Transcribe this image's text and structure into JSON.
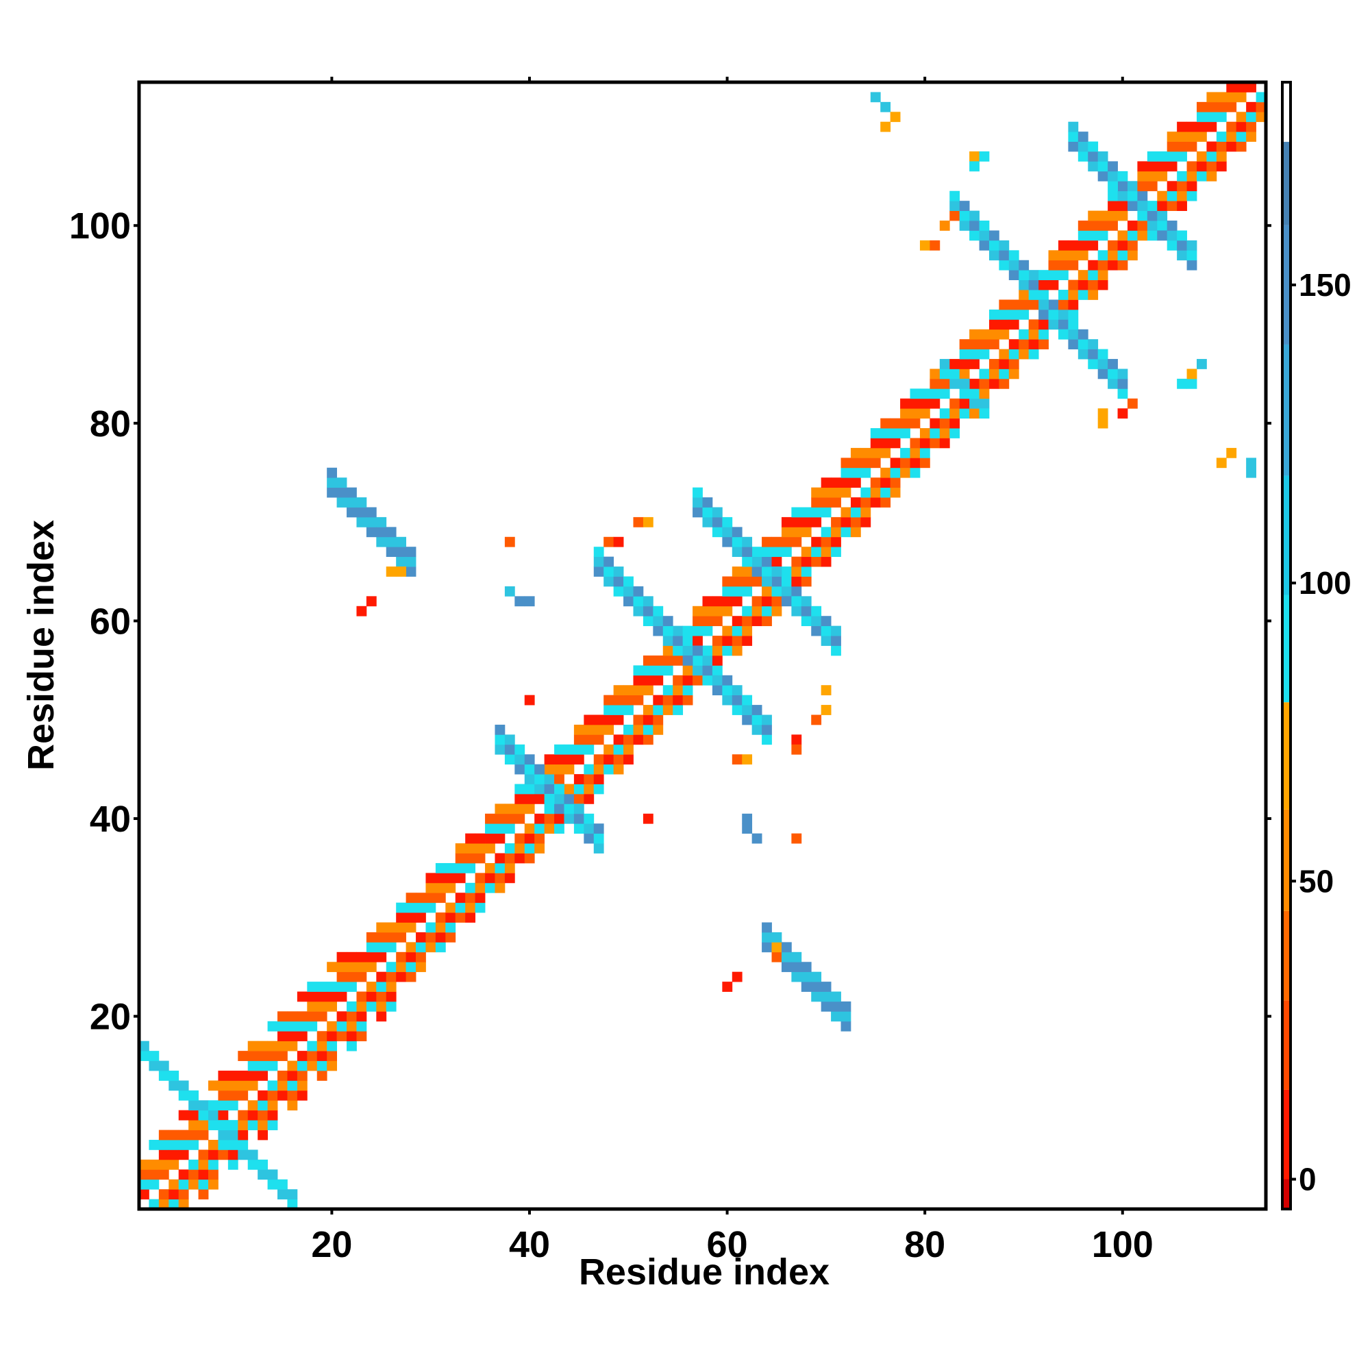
{
  "chart_data": {
    "type": "heatmap",
    "title": "",
    "xlabel": "Residue index",
    "ylabel": "Residue index",
    "xlim": [
      1,
      114
    ],
    "ylim": [
      1,
      114
    ],
    "x_ticks": [
      20,
      40,
      60,
      80,
      100
    ],
    "y_ticks": [
      20,
      40,
      60,
      80,
      100
    ],
    "x_tick_labels": [
      "20",
      "40",
      "60",
      "80",
      "100"
    ],
    "y_tick_labels": [
      "20",
      "40",
      "60",
      "80",
      "100"
    ],
    "colorbar": {
      "range": [
        -5,
        184
      ],
      "ticks": [
        0,
        50,
        100,
        150
      ],
      "tick_labels": [
        "0",
        "50",
        "100",
        "150"
      ],
      "bands": [
        {
          "from": -5,
          "to": 0,
          "color": "#d40000"
        },
        {
          "from": 0,
          "to": 15,
          "color": "#ff1a00"
        },
        {
          "from": 15,
          "to": 30,
          "color": "#ff4a00"
        },
        {
          "from": 30,
          "to": 45,
          "color": "#ff6a00"
        },
        {
          "from": 45,
          "to": 62,
          "color": "#ff8c00"
        },
        {
          "from": 62,
          "to": 80,
          "color": "#ffa500"
        },
        {
          "from": 80,
          "to": 98,
          "color": "#1ee0ee"
        },
        {
          "from": 98,
          "to": 118,
          "color": "#1ec8e6"
        },
        {
          "from": 118,
          "to": 140,
          "color": "#3aa8d8"
        },
        {
          "from": 140,
          "to": 160,
          "color": "#4a90c8"
        },
        {
          "from": 160,
          "to": 174,
          "color": "#4682b4"
        },
        {
          "from": 174,
          "to": 184,
          "color": "#ffffff"
        }
      ]
    },
    "colors": {
      "red": "#ff1a00",
      "dark_orange": "#ff5a00",
      "orange": "#ff8c00",
      "light_orange": "#ffa500",
      "cyan": "#1ee0ee",
      "sky_blue": "#2ec4e0",
      "steel_blue": "#4a90c8"
    },
    "regions": [
      {
        "kind": "diagonal",
        "i_start": 1,
        "i_end": 114,
        "band": [
          1,
          2,
          3,
          4,
          5
        ],
        "colors": [
          "dark_orange",
          "orange",
          "red",
          "cyan"
        ]
      },
      {
        "kind": "antidiagonal",
        "center": [
          5,
          12
        ],
        "length": 8,
        "width": 2,
        "colors": [
          "cyan",
          "sky_blue"
        ]
      },
      {
        "kind": "antidiagonal",
        "center": [
          12,
          5
        ],
        "length": 8,
        "width": 2,
        "colors": [
          "cyan",
          "sky_blue"
        ]
      },
      {
        "kind": "antidiagonal",
        "center": [
          24,
          69
        ],
        "length": 8,
        "width": 3,
        "colors": [
          "steel_blue",
          "sky_blue"
        ]
      },
      {
        "kind": "antidiagonal",
        "center": [
          68,
          23
        ],
        "length": 8,
        "width": 3,
        "colors": [
          "steel_blue",
          "sky_blue"
        ]
      },
      {
        "kind": "antidiagonal",
        "center": [
          40,
          44
        ],
        "length": 6,
        "width": 3,
        "colors": [
          "steel_blue",
          "sky_blue",
          "cyan"
        ]
      },
      {
        "kind": "antidiagonal",
        "center": [
          44,
          40
        ],
        "length": 6,
        "width": 3,
        "colors": [
          "steel_blue",
          "sky_blue",
          "cyan"
        ]
      },
      {
        "kind": "antidiagonal",
        "center": [
          51,
          61
        ],
        "length": 8,
        "width": 3,
        "colors": [
          "steel_blue",
          "sky_blue",
          "cyan"
        ]
      },
      {
        "kind": "antidiagonal",
        "center": [
          60,
          52
        ],
        "length": 8,
        "width": 3,
        "colors": [
          "steel_blue",
          "sky_blue",
          "cyan"
        ]
      },
      {
        "kind": "antidiagonal",
        "center": [
          61,
          67
        ],
        "length": 8,
        "width": 3,
        "colors": [
          "steel_blue",
          "sky_blue",
          "cyan"
        ]
      },
      {
        "kind": "antidiagonal",
        "center": [
          67,
          61
        ],
        "length": 8,
        "width": 3,
        "colors": [
          "steel_blue",
          "sky_blue",
          "cyan"
        ]
      },
      {
        "kind": "antidiagonal",
        "center": [
          87,
          97
        ],
        "length": 9,
        "width": 3,
        "colors": [
          "steel_blue",
          "sky_blue",
          "cyan"
        ]
      },
      {
        "kind": "antidiagonal",
        "center": [
          96,
          87
        ],
        "length": 9,
        "width": 3,
        "colors": [
          "steel_blue",
          "sky_blue",
          "cyan"
        ]
      },
      {
        "kind": "antidiagonal",
        "center": [
          98,
          105
        ],
        "length": 7,
        "width": 3,
        "colors": [
          "sky_blue",
          "steel_blue",
          "cyan"
        ]
      },
      {
        "kind": "antidiagonal",
        "center": [
          104,
          99
        ],
        "length": 7,
        "width": 3,
        "colors": [
          "sky_blue",
          "steel_blue",
          "cyan"
        ]
      },
      {
        "kind": "antidiagonal",
        "center": [
          84,
          83
        ],
        "length": 4,
        "width": 2,
        "colors": [
          "cyan",
          "sky_blue"
        ]
      }
    ],
    "isolated_cells": [
      {
        "x": 75,
        "y": 113,
        "c": "sky_blue"
      },
      {
        "x": 76,
        "y": 112,
        "c": "sky_blue"
      },
      {
        "x": 76,
        "y": 110,
        "c": "light_orange"
      },
      {
        "x": 77,
        "y": 111,
        "c": "light_orange"
      },
      {
        "x": 85,
        "y": 107,
        "c": "light_orange"
      },
      {
        "x": 86,
        "y": 107,
        "c": "cyan"
      },
      {
        "x": 85,
        "y": 106,
        "c": "cyan"
      },
      {
        "x": 38,
        "y": 68,
        "c": "dark_orange"
      },
      {
        "x": 48,
        "y": 68,
        "c": "dark_orange"
      },
      {
        "x": 49,
        "y": 68,
        "c": "red"
      },
      {
        "x": 51,
        "y": 70,
        "c": "dark_orange"
      },
      {
        "x": 52,
        "y": 70,
        "c": "light_orange"
      },
      {
        "x": 38,
        "y": 63,
        "c": "sky_blue"
      },
      {
        "x": 39,
        "y": 62,
        "c": "steel_blue"
      },
      {
        "x": 40,
        "y": 62,
        "c": "steel_blue"
      },
      {
        "x": 23,
        "y": 61,
        "c": "red"
      },
      {
        "x": 24,
        "y": 62,
        "c": "red"
      },
      {
        "x": 40,
        "y": 52,
        "c": "red"
      },
      {
        "x": 52,
        "y": 40,
        "c": "red"
      },
      {
        "x": 62,
        "y": 40,
        "c": "steel_blue"
      },
      {
        "x": 62,
        "y": 39,
        "c": "steel_blue"
      },
      {
        "x": 63,
        "y": 38,
        "c": "steel_blue"
      },
      {
        "x": 67,
        "y": 38,
        "c": "dark_orange"
      },
      {
        "x": 67,
        "y": 48,
        "c": "red"
      },
      {
        "x": 67,
        "y": 47,
        "c": "dark_orange"
      },
      {
        "x": 69,
        "y": 50,
        "c": "dark_orange"
      },
      {
        "x": 70,
        "y": 51,
        "c": "light_orange"
      },
      {
        "x": 70,
        "y": 53,
        "c": "light_orange"
      },
      {
        "x": 61,
        "y": 46,
        "c": "dark_orange"
      },
      {
        "x": 62,
        "y": 46,
        "c": "light_orange"
      },
      {
        "x": 60,
        "y": 23,
        "c": "red"
      },
      {
        "x": 61,
        "y": 24,
        "c": "red"
      },
      {
        "x": 65,
        "y": 27,
        "c": "light_orange"
      },
      {
        "x": 65,
        "y": 26,
        "c": "dark_orange"
      },
      {
        "x": 26,
        "y": 65,
        "c": "light_orange"
      },
      {
        "x": 27,
        "y": 65,
        "c": "light_orange"
      },
      {
        "x": 80,
        "y": 98,
        "c": "light_orange"
      },
      {
        "x": 81,
        "y": 98,
        "c": "dark_orange"
      },
      {
        "x": 82,
        "y": 100,
        "c": "orange"
      },
      {
        "x": 83,
        "y": 101,
        "c": "dark_orange"
      },
      {
        "x": 98,
        "y": 80,
        "c": "light_orange"
      },
      {
        "x": 98,
        "y": 81,
        "c": "light_orange"
      },
      {
        "x": 100,
        "y": 81,
        "c": "red"
      },
      {
        "x": 101,
        "y": 82,
        "c": "dark_orange"
      },
      {
        "x": 106,
        "y": 84,
        "c": "cyan"
      },
      {
        "x": 107,
        "y": 84,
        "c": "cyan"
      },
      {
        "x": 107,
        "y": 85,
        "c": "light_orange"
      },
      {
        "x": 108,
        "y": 86,
        "c": "sky_blue"
      },
      {
        "x": 110,
        "y": 76,
        "c": "light_orange"
      },
      {
        "x": 111,
        "y": 77,
        "c": "light_orange"
      },
      {
        "x": 113,
        "y": 75,
        "c": "sky_blue"
      },
      {
        "x": 113,
        "y": 76,
        "c": "sky_blue"
      }
    ]
  }
}
